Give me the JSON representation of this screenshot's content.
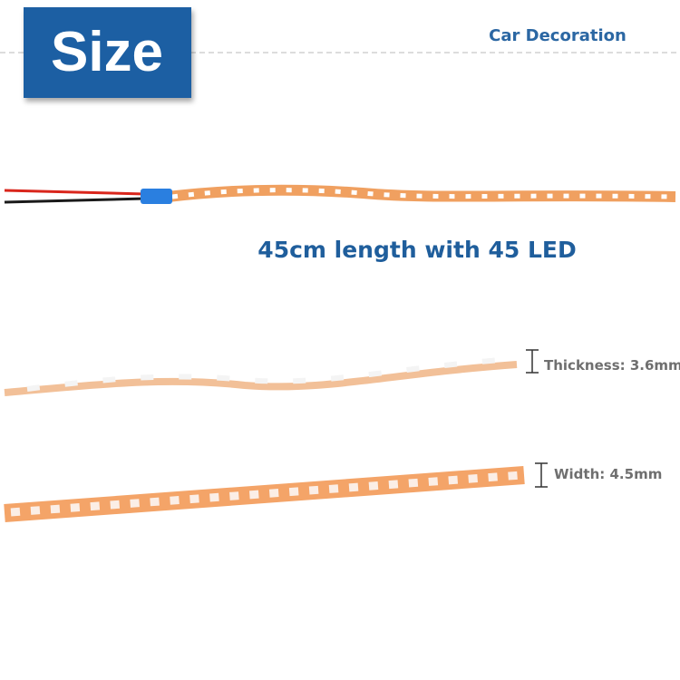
{
  "badge": "Size",
  "brand": "Car Decoration",
  "caption": "45cm length with 45 LED",
  "specs": {
    "thickness": "Thickness: 3.6mm",
    "width": "Width: 4.5mm"
  }
}
